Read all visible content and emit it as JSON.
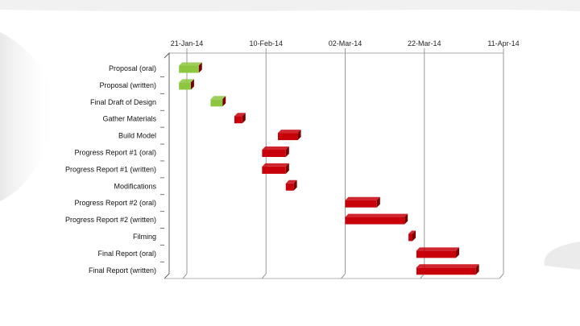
{
  "chart_data": {
    "type": "gantt",
    "title": "",
    "xlabel": "",
    "ylabel": "",
    "x_axis_position": "top",
    "x_ticks": [
      "21-Jan-14",
      "10-Feb-14",
      "02-Mar-14",
      "22-Mar-14",
      "11-Apr-14"
    ],
    "xlim": [
      "2014-01-21",
      "2014-04-11"
    ],
    "grid": "vertical",
    "legend": "none",
    "tasks": [
      {
        "label": "Proposal (oral)",
        "start": "2014-01-19",
        "end": "2014-01-24",
        "status": "complete"
      },
      {
        "label": "Proposal (written)",
        "start": "2014-01-19",
        "end": "2014-01-22",
        "status": "complete"
      },
      {
        "label": "Final Draft of Design",
        "start": "2014-01-27",
        "end": "2014-01-30",
        "status": "complete"
      },
      {
        "label": "Gather Materials",
        "start": "2014-02-02",
        "end": "2014-02-04",
        "status": "incomplete"
      },
      {
        "label": "Build Model",
        "start": "2014-02-13",
        "end": "2014-02-18",
        "status": "incomplete"
      },
      {
        "label": "Progress Report #1 (oral)",
        "start": "2014-02-09",
        "end": "2014-02-15",
        "status": "incomplete"
      },
      {
        "label": "Progress Report #1 (written)",
        "start": "2014-02-09",
        "end": "2014-02-15",
        "status": "incomplete"
      },
      {
        "label": "Modifications",
        "start": "2014-02-15",
        "end": "2014-02-17",
        "status": "incomplete"
      },
      {
        "label": "Progress Report #2 (oral)",
        "start": "2014-03-02",
        "end": "2014-03-10",
        "status": "incomplete"
      },
      {
        "label": "Progress Report #2 (written)",
        "start": "2014-03-02",
        "end": "2014-03-17",
        "status": "incomplete"
      },
      {
        "label": "Filming",
        "start": "2014-03-18",
        "end": "2014-03-19",
        "status": "incomplete"
      },
      {
        "label": "Final Report (oral)",
        "start": "2014-03-20",
        "end": "2014-03-30",
        "status": "incomplete"
      },
      {
        "label": "Final Report (written)",
        "start": "2014-03-20",
        "end": "2014-04-04",
        "status": "incomplete"
      }
    ],
    "colors": {
      "complete": "#8dc63f",
      "complete_shade": "#5e8f1f",
      "incomplete": "#c8000a",
      "incomplete_shade": "#7a0000",
      "gridline": "#9a9a9a",
      "axis": "#555555"
    }
  }
}
